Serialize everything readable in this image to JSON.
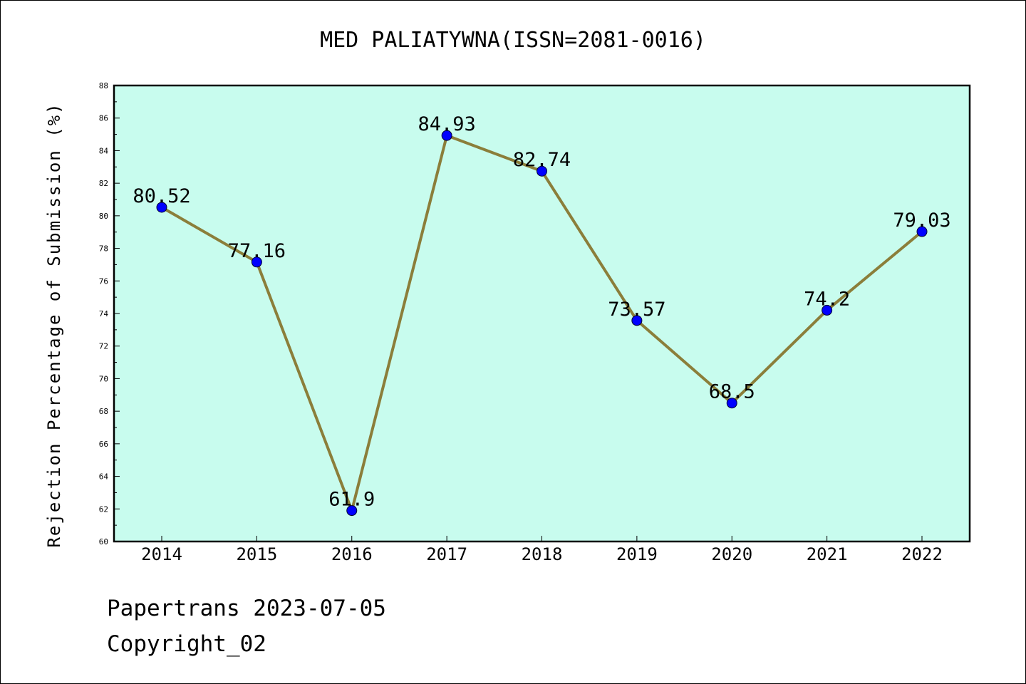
{
  "chart_data": {
    "type": "line",
    "title": "MED PALIATYWNA(ISSN=2081-0016)",
    "xlabel": "",
    "ylabel": "Rejection Percentage of Submission (%)",
    "categories": [
      "2014",
      "2015",
      "2016",
      "2017",
      "2018",
      "2019",
      "2020",
      "2021",
      "2022"
    ],
    "series": [
      {
        "values": [
          80.52,
          77.16,
          61.9,
          84.93,
          82.74,
          73.57,
          68.5,
          74.2,
          79.03
        ]
      }
    ],
    "data_labels": [
      "80.52",
      "77.16",
      "61.9",
      "84.93",
      "82.74",
      "73.57",
      "68.5",
      "74.2",
      "79.03"
    ],
    "ylim": [
      60,
      88
    ],
    "yticks": [
      "60",
      "62",
      "64",
      "66",
      "68",
      "70",
      "72",
      "74",
      "76",
      "78",
      "80",
      "82",
      "84",
      "86",
      "88"
    ],
    "grid": false,
    "legend": "none",
    "colors": {
      "plot_background": "#c8fcee",
      "line": "#8b7e3a",
      "marker": "#0000ff"
    }
  },
  "footer": {
    "line1": "Papertrans 2023-07-05",
    "line2": "Copyright_02"
  }
}
